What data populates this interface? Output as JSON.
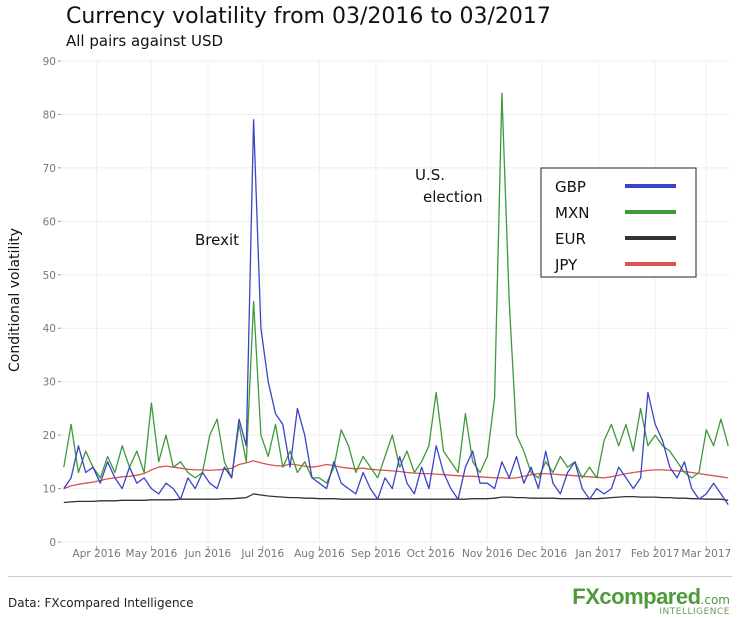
{
  "title": "Currency volatility from 03/2016 to 03/2017",
  "subtitle": "All pairs against USD",
  "source": "Data: FXcompared Intelligence",
  "logo": {
    "brand": "FXcompared",
    "suffix": ".com",
    "tagline": "INTELLIGENCE"
  },
  "chart_data": {
    "type": "line",
    "title": "Currency volatility from 03/2016 to 03/2017",
    "subtitle": "All pairs against USD",
    "xlabel": "",
    "ylabel": "Conditional volatility",
    "ylim": [
      0,
      90
    ],
    "yticks": [
      0,
      10,
      20,
      30,
      40,
      50,
      60,
      70,
      80,
      90
    ],
    "xlim": [
      "2016-03-13",
      "2017-03-14"
    ],
    "xticks": [
      {
        "date": "2016-04-01",
        "label": "Apr 2016"
      },
      {
        "date": "2016-05-01",
        "label": "May 2016"
      },
      {
        "date": "2016-06-01",
        "label": "Jun 2016"
      },
      {
        "date": "2016-07-01",
        "label": "Jul 2016"
      },
      {
        "date": "2016-08-01",
        "label": "Aug 2016"
      },
      {
        "date": "2016-09-01",
        "label": "Sep 2016"
      },
      {
        "date": "2016-10-01",
        "label": "Oct 2016"
      },
      {
        "date": "2016-11-01",
        "label": "Nov 2016"
      },
      {
        "date": "2016-12-01",
        "label": "Dec 2016"
      },
      {
        "date": "2017-01-01",
        "label": "Jan 2017"
      },
      {
        "date": "2017-02-01",
        "label": "Feb 2017"
      },
      {
        "date": "2017-03-01",
        "label": "Mar 2017"
      }
    ],
    "grid": true,
    "legend_position": "top-right",
    "annotations": [
      {
        "text": "Brexit",
        "date": "2016-06-24"
      },
      {
        "text": "U.S.",
        "date": "2016-11-08"
      },
      {
        "text": "election",
        "date": "2016-11-08"
      }
    ],
    "x": [
      "2016-03-14",
      "2016-03-18",
      "2016-03-22",
      "2016-03-26",
      "2016-03-30",
      "2016-04-03",
      "2016-04-07",
      "2016-04-11",
      "2016-04-15",
      "2016-04-19",
      "2016-04-23",
      "2016-04-27",
      "2016-05-01",
      "2016-05-05",
      "2016-05-09",
      "2016-05-13",
      "2016-05-17",
      "2016-05-21",
      "2016-05-25",
      "2016-05-29",
      "2016-06-02",
      "2016-06-06",
      "2016-06-10",
      "2016-06-14",
      "2016-06-18",
      "2016-06-22",
      "2016-06-26",
      "2016-06-30",
      "2016-07-04",
      "2016-07-08",
      "2016-07-12",
      "2016-07-16",
      "2016-07-20",
      "2016-07-24",
      "2016-07-28",
      "2016-08-01",
      "2016-08-05",
      "2016-08-09",
      "2016-08-13",
      "2016-08-17",
      "2016-08-21",
      "2016-08-25",
      "2016-08-29",
      "2016-09-02",
      "2016-09-06",
      "2016-09-10",
      "2016-09-14",
      "2016-09-18",
      "2016-09-22",
      "2016-09-26",
      "2016-09-30",
      "2016-10-04",
      "2016-10-08",
      "2016-10-12",
      "2016-10-16",
      "2016-10-20",
      "2016-10-24",
      "2016-10-28",
      "2016-11-01",
      "2016-11-05",
      "2016-11-09",
      "2016-11-13",
      "2016-11-17",
      "2016-11-21",
      "2016-11-25",
      "2016-11-29",
      "2016-12-03",
      "2016-12-07",
      "2016-12-11",
      "2016-12-15",
      "2016-12-19",
      "2016-12-23",
      "2016-12-27",
      "2016-12-31",
      "2017-01-04",
      "2017-01-08",
      "2017-01-12",
      "2017-01-16",
      "2017-01-20",
      "2017-01-24",
      "2017-01-28",
      "2017-02-01",
      "2017-02-05",
      "2017-02-09",
      "2017-02-13",
      "2017-02-17",
      "2017-02-21",
      "2017-02-25",
      "2017-03-01",
      "2017-03-05",
      "2017-03-09",
      "2017-03-13"
    ],
    "series": [
      {
        "name": "GBP",
        "color": "#3b44c4",
        "values": [
          10,
          12,
          18,
          13,
          14,
          11,
          15,
          12,
          10,
          14,
          11,
          12,
          10,
          9,
          11,
          10,
          8,
          12,
          10,
          13,
          11,
          10,
          14,
          12,
          23,
          18,
          79,
          40,
          30,
          24,
          22,
          14,
          25,
          20,
          12,
          11,
          10,
          15,
          11,
          10,
          9,
          13,
          10,
          8,
          12,
          10,
          16,
          11,
          9,
          14,
          10,
          18,
          13,
          10,
          8,
          14,
          17,
          11,
          11,
          10,
          15,
          12,
          16,
          11,
          14,
          10,
          17,
          11,
          9,
          13,
          15,
          10,
          8,
          10,
          9,
          10,
          14,
          12,
          10,
          12,
          28,
          22,
          19,
          14,
          12,
          15,
          10,
          8,
          9,
          11,
          9,
          7
        ]
      },
      {
        "name": "MXN",
        "color": "#3e9a3a",
        "values": [
          14,
          22,
          13,
          17,
          14,
          12,
          16,
          13,
          18,
          14,
          17,
          13,
          26,
          15,
          20,
          14,
          15,
          13,
          12,
          13,
          20,
          23,
          15,
          12,
          22,
          15,
          45,
          20,
          16,
          22,
          14,
          17,
          13,
          15,
          12,
          12,
          11,
          14,
          21,
          18,
          13,
          16,
          14,
          12,
          16,
          20,
          14,
          17,
          13,
          15,
          18,
          28,
          17,
          15,
          13,
          24,
          15,
          13,
          16,
          27,
          84,
          45,
          20,
          17,
          13,
          12,
          15,
          13,
          16,
          14,
          15,
          12,
          14,
          12,
          19,
          22,
          18,
          22,
          17,
          25,
          18,
          20,
          18,
          17,
          15,
          13,
          12,
          13,
          21,
          18,
          23,
          18
        ]
      },
      {
        "name": "EUR",
        "color": "#333333",
        "values": [
          7.4,
          7.5,
          7.6,
          7.6,
          7.6,
          7.7,
          7.7,
          7.7,
          7.8,
          7.8,
          7.8,
          7.8,
          7.9,
          7.9,
          7.9,
          7.9,
          8,
          8,
          8,
          8,
          8,
          8,
          8.1,
          8.1,
          8.2,
          8.3,
          9,
          8.8,
          8.6,
          8.5,
          8.4,
          8.3,
          8.3,
          8.2,
          8.2,
          8.1,
          8.1,
          8.1,
          8,
          8,
          8,
          8,
          8,
          8,
          8,
          8,
          8,
          8,
          8,
          8,
          8,
          8,
          8,
          8,
          8,
          8,
          8.1,
          8.1,
          8.1,
          8.2,
          8.4,
          8.4,
          8.3,
          8.3,
          8.2,
          8.2,
          8.2,
          8.2,
          8.1,
          8.1,
          8.1,
          8.1,
          8.1,
          8.1,
          8.2,
          8.3,
          8.4,
          8.5,
          8.5,
          8.4,
          8.4,
          8.4,
          8.3,
          8.3,
          8.2,
          8.2,
          8.1,
          8.1,
          8,
          8,
          8,
          7.8
        ]
      },
      {
        "name": "JPY",
        "color": "#d9534f",
        "values": [
          10,
          10.5,
          10.8,
          11,
          11.2,
          11.5,
          11.8,
          12,
          12.2,
          12.3,
          12.5,
          12.8,
          13.5,
          14,
          14.2,
          14,
          13.8,
          13.6,
          13.5,
          13.5,
          13.4,
          13.5,
          13.6,
          13.8,
          14.5,
          14.8,
          15.2,
          14.8,
          14.5,
          14.3,
          14.2,
          14.6,
          14.4,
          14.2,
          14,
          14.2,
          14.5,
          14.3,
          14,
          13.8,
          13.7,
          13.8,
          13.6,
          13.5,
          13.4,
          13.3,
          13.2,
          13,
          12.9,
          12.8,
          12.8,
          12.7,
          12.6,
          12.5,
          12.4,
          12.3,
          12.3,
          12.2,
          12.1,
          12,
          12,
          11.9,
          12,
          12.3,
          12.6,
          12.8,
          12.8,
          12.7,
          12.6,
          12.5,
          12.4,
          12.3,
          12.2,
          12.1,
          12,
          12.2,
          12.5,
          12.8,
          13,
          13.2,
          13.4,
          13.5,
          13.5,
          13.4,
          13.3,
          13.2,
          13,
          12.8,
          12.6,
          12.4,
          12.2,
          12
        ]
      }
    ]
  }
}
